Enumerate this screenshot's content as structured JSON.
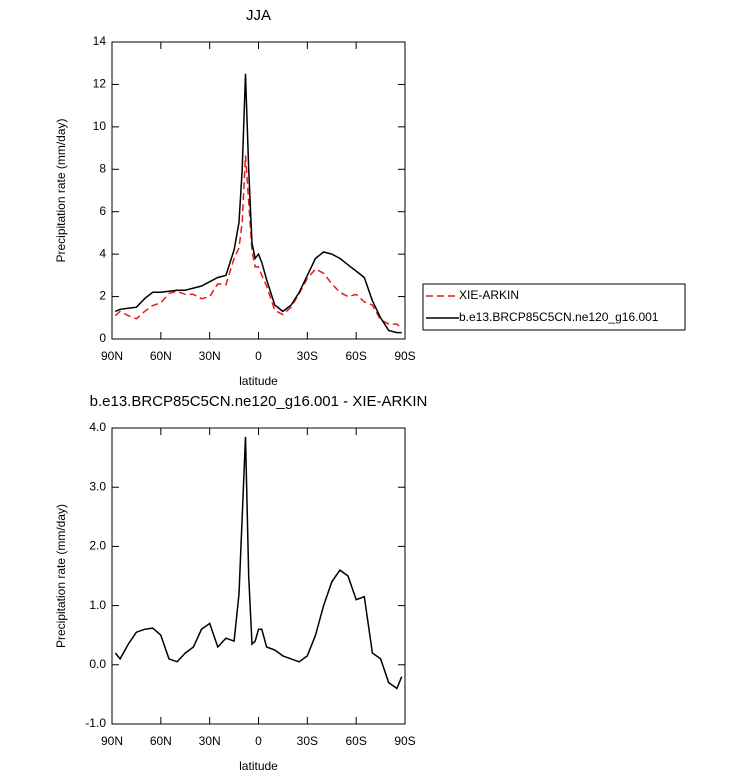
{
  "chart_data": [
    {
      "type": "line",
      "title": "JJA",
      "xlabel": "latitude",
      "ylabel": "Precipitation rate (mm/day)",
      "x": [
        88,
        85,
        80,
        75,
        70,
        65,
        60,
        55,
        50,
        45,
        40,
        35,
        30,
        25,
        20,
        15,
        12,
        10,
        8,
        6,
        4,
        2,
        0,
        -2,
        -5,
        -10,
        -15,
        -20,
        -25,
        -30,
        -35,
        -40,
        -45,
        -50,
        -55,
        -60,
        -65,
        -70,
        -75,
        -80,
        -85,
        -88
      ],
      "series": [
        {
          "name": "XIE-ARKIN",
          "color": "#e8191b",
          "dash": "dashed",
          "values": [
            1.1,
            1.3,
            1.1,
            0.95,
            1.3,
            1.58,
            1.7,
            2.15,
            2.25,
            2.1,
            2.1,
            1.9,
            2.0,
            2.6,
            2.55,
            3.8,
            4.3,
            5.5,
            8.65,
            6.5,
            4.15,
            3.4,
            3.4,
            3.0,
            2.5,
            1.35,
            1.15,
            1.5,
            2.15,
            2.85,
            3.3,
            3.1,
            2.6,
            2.2,
            2.0,
            2.1,
            1.75,
            1.6,
            0.9,
            0.7,
            0.7,
            0.5
          ]
        },
        {
          "name": "b.e13.BRCP85C5CN.ne120_g16.001",
          "color": "#000000",
          "dash": "solid",
          "values": [
            1.3,
            1.4,
            1.45,
            1.5,
            1.9,
            2.2,
            2.2,
            2.25,
            2.3,
            2.3,
            2.4,
            2.5,
            2.7,
            2.9,
            3.0,
            4.2,
            5.5,
            8.0,
            12.5,
            8.0,
            4.5,
            3.8,
            4.0,
            3.6,
            2.8,
            1.6,
            1.3,
            1.6,
            2.2,
            3.0,
            3.8,
            4.1,
            4.0,
            3.8,
            3.5,
            3.2,
            2.9,
            1.8,
            1.0,
            0.4,
            0.3,
            0.3
          ]
        }
      ],
      "xlim": [
        90,
        -90
      ],
      "xticks": [
        {
          "value": 90,
          "label": "90N"
        },
        {
          "value": 60,
          "label": "60N"
        },
        {
          "value": 30,
          "label": "30N"
        },
        0,
        {
          "value": -30,
          "label": "30S"
        },
        {
          "value": -60,
          "label": "60S"
        },
        {
          "value": -90,
          "label": "90S"
        }
      ],
      "ylim": [
        0,
        14
      ],
      "yticks": [
        0,
        2,
        4,
        6,
        8,
        10,
        12,
        14
      ],
      "legend": "right"
    },
    {
      "type": "line",
      "title": "b.e13.BRCP85C5CN.ne120_g16.001 - XIE-ARKIN",
      "xlabel": "latitude",
      "ylabel": "Precipitation rate (mm/day)",
      "x": [
        88,
        85,
        80,
        75,
        70,
        65,
        60,
        55,
        50,
        45,
        40,
        35,
        30,
        25,
        20,
        15,
        12,
        10,
        8,
        6,
        4,
        2,
        0,
        -2,
        -5,
        -10,
        -15,
        -20,
        -25,
        -30,
        -35,
        -40,
        -45,
        -50,
        -55,
        -60,
        -65,
        -70,
        -75,
        -80,
        -85,
        -88
      ],
      "series": [
        {
          "color": "#000000",
          "dash": "solid",
          "values": [
            0.2,
            0.1,
            0.35,
            0.55,
            0.6,
            0.62,
            0.5,
            0.1,
            0.05,
            0.2,
            0.3,
            0.6,
            0.7,
            0.3,
            0.45,
            0.4,
            1.2,
            2.5,
            3.85,
            1.5,
            0.35,
            0.4,
            0.6,
            0.6,
            0.3,
            0.25,
            0.15,
            0.1,
            0.05,
            0.15,
            0.5,
            1.0,
            1.4,
            1.6,
            1.5,
            1.1,
            1.15,
            0.2,
            0.1,
            -0.3,
            -0.4,
            -0.2
          ]
        }
      ],
      "xlim": [
        90,
        -90
      ],
      "xticks": [
        {
          "value": 90,
          "label": "90N"
        },
        {
          "value": 60,
          "label": "60N"
        },
        {
          "value": 30,
          "label": "30N"
        },
        0,
        {
          "value": -30,
          "label": "30S"
        },
        {
          "value": -60,
          "label": "60S"
        },
        {
          "value": -90,
          "label": "90S"
        }
      ],
      "ylim": [
        -1,
        4
      ],
      "yticks": [
        {
          "value": -1,
          "label": "-1.0"
        },
        {
          "value": 0,
          "label": "0.0"
        },
        {
          "value": 1,
          "label": "1.0"
        },
        {
          "value": 2,
          "label": "2.0"
        },
        {
          "value": 3,
          "label": "3.0"
        },
        {
          "value": 4,
          "label": "4.0"
        }
      ]
    }
  ]
}
